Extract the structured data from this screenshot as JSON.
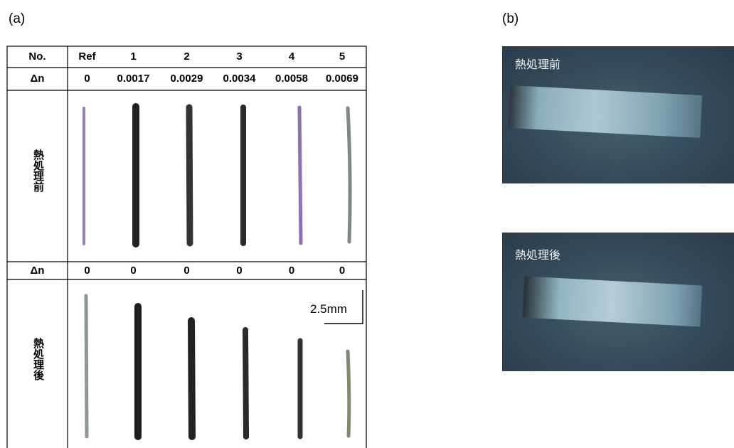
{
  "panel_a": {
    "label": "(a)",
    "table": {
      "header": [
        "No.",
        "Ref",
        "1",
        "2",
        "3",
        "4",
        "5"
      ],
      "rows": [
        [
          "Δn",
          "0",
          "0.0017",
          "0.0029",
          "0.0034",
          "0.0058",
          "0.0069"
        ],
        [
          "熱処理前"
        ],
        [
          "Δn",
          "0",
          "0",
          "0",
          "0",
          "0",
          "0"
        ],
        [
          "熱処理後"
        ]
      ]
    },
    "scale_bar": "2.5mm"
  },
  "panel_b": {
    "label": "(b)",
    "photos": [
      {
        "label": "熱処理前"
      },
      {
        "label": "熱処理後"
      }
    ]
  }
}
